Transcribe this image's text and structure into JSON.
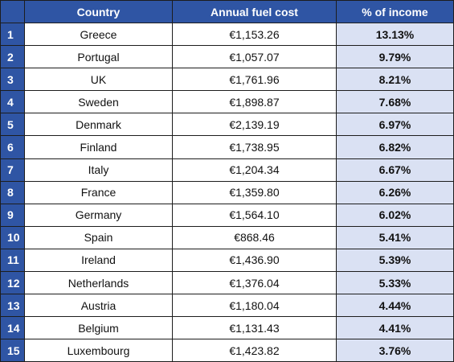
{
  "table": {
    "headers": {
      "rank": "",
      "country": "Country",
      "cost": "Annual fuel cost",
      "pct": "% of income"
    },
    "rows": [
      {
        "rank": "1",
        "country": "Greece",
        "cost": "€1,153.26",
        "pct": "13.13%"
      },
      {
        "rank": "2",
        "country": "Portugal",
        "cost": "€1,057.07",
        "pct": "9.79%"
      },
      {
        "rank": "3",
        "country": "UK",
        "cost": "€1,761.96",
        "pct": "8.21%"
      },
      {
        "rank": "4",
        "country": "Sweden",
        "cost": "€1,898.87",
        "pct": "7.68%"
      },
      {
        "rank": "5",
        "country": "Denmark",
        "cost": "€2,139.19",
        "pct": "6.97%"
      },
      {
        "rank": "6",
        "country": "Finland",
        "cost": "€1,738.95",
        "pct": "6.82%"
      },
      {
        "rank": "7",
        "country": "Italy",
        "cost": "€1,204.34",
        "pct": "6.67%"
      },
      {
        "rank": "8",
        "country": "France",
        "cost": "€1,359.80",
        "pct": "6.26%"
      },
      {
        "rank": "9",
        "country": "Germany",
        "cost": "€1,564.10",
        "pct": "6.02%"
      },
      {
        "rank": "10",
        "country": "Spain",
        "cost": "€868.46",
        "pct": "5.41%"
      },
      {
        "rank": "11",
        "country": "Ireland",
        "cost": "€1,436.90",
        "pct": "5.39%"
      },
      {
        "rank": "12",
        "country": "Netherlands",
        "cost": "€1,376.04",
        "pct": "5.33%"
      },
      {
        "rank": "13",
        "country": "Austria",
        "cost": "€1,180.04",
        "pct": "4.44%"
      },
      {
        "rank": "14",
        "country": "Belgium",
        "cost": "€1,131.43",
        "pct": "4.41%"
      },
      {
        "rank": "15",
        "country": "Luxembourg",
        "cost": "€1,423.82",
        "pct": "3.76%"
      }
    ]
  },
  "colors": {
    "header_bg": "#2f55a4",
    "header_text": "#ffffff",
    "highlight_column_bg": "#dae1f3",
    "border": "#1d1d1d"
  }
}
